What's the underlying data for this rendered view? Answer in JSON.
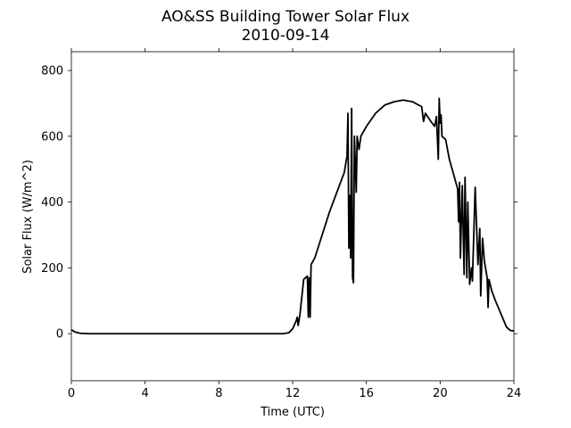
{
  "chart_data": {
    "type": "line",
    "title": "AO&SS Building Tower Solar Flux",
    "subtitle": "2010-09-14",
    "x_label": "Time (UTC)",
    "y_label": "Solar Flux (W/m^2)",
    "xlim": [
      0,
      24
    ],
    "xticks": [
      0,
      4,
      8,
      12,
      16,
      20,
      24
    ],
    "ylim": [
      -143,
      857
    ],
    "yticks": [
      0,
      200,
      400,
      600,
      800
    ],
    "grid": false,
    "color": "#000000",
    "x": [
      0,
      0.2,
      0.5,
      1,
      11.5,
      11.8,
      12.0,
      12.2,
      12.25,
      12.3,
      12.4,
      12.6,
      12.8,
      12.85,
      12.9,
      12.95,
      13.0,
      13.2,
      13.6,
      14.0,
      14.4,
      14.8,
      14.95,
      15.0,
      15.05,
      15.1,
      15.15,
      15.2,
      15.25,
      15.3,
      15.35,
      15.45,
      15.5,
      15.6,
      15.7,
      16.0,
      16.5,
      17.0,
      17.5,
      18.0,
      18.5,
      19.0,
      19.1,
      19.2,
      19.5,
      19.7,
      19.8,
      19.9,
      19.95,
      20.0,
      20.05,
      20.1,
      20.3,
      20.5,
      20.8,
      20.95,
      21.0,
      21.05,
      21.1,
      21.2,
      21.3,
      21.35,
      21.45,
      21.5,
      21.6,
      21.7,
      21.75,
      21.9,
      22.05,
      22.15,
      22.2,
      22.3,
      22.4,
      22.55,
      22.6,
      22.65,
      22.8,
      23.0,
      23.3,
      23.6,
      23.8,
      24
    ],
    "values": [
      12,
      5,
      1,
      0,
      0,
      3,
      15,
      40,
      50,
      25,
      60,
      165,
      175,
      50,
      170,
      50,
      210,
      230,
      300,
      370,
      430,
      490,
      540,
      670,
      260,
      420,
      230,
      685,
      170,
      155,
      600,
      430,
      600,
      560,
      600,
      630,
      670,
      695,
      705,
      710,
      705,
      690,
      645,
      670,
      645,
      630,
      660,
      530,
      715,
      640,
      665,
      600,
      590,
      530,
      470,
      440,
      340,
      460,
      230,
      450,
      180,
      475,
      170,
      400,
      150,
      200,
      160,
      445,
      210,
      320,
      115,
      290,
      220,
      170,
      80,
      165,
      130,
      100,
      60,
      20,
      10,
      8
    ]
  }
}
